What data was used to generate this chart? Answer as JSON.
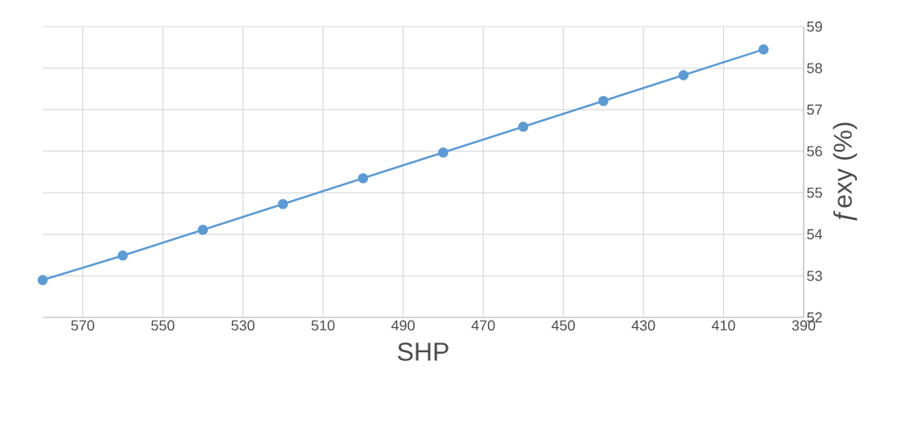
{
  "chart_data": {
    "type": "line",
    "xlabel": "SHP",
    "ylabel": "ƒexy (%)",
    "x": [
      580,
      560,
      540,
      520,
      500,
      480,
      460,
      440,
      420,
      400
    ],
    "series": [
      {
        "color": "#5b9bd5",
        "values": [
          52.9,
          53.49,
          54.11,
          54.73,
          55.35,
          55.97,
          56.59,
          57.21,
          57.83,
          58.45
        ]
      }
    ],
    "xlim": [
      580,
      390
    ],
    "xticks": [
      570,
      550,
      530,
      510,
      490,
      470,
      450,
      430,
      410,
      390
    ],
    "ylim": [
      52,
      59
    ],
    "yticks": [
      52,
      53,
      54,
      55,
      56,
      57,
      58,
      59
    ],
    "grid": true,
    "marker": "circle",
    "line_style": "solid"
  }
}
